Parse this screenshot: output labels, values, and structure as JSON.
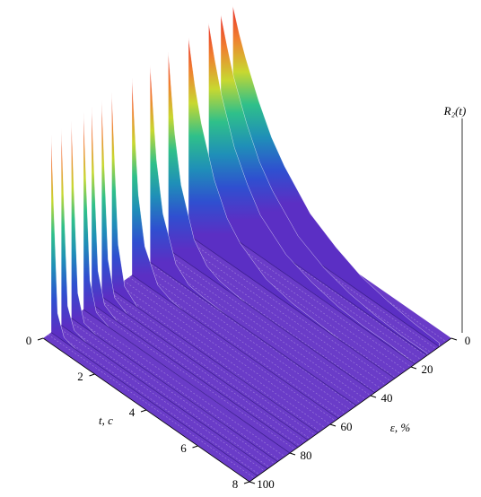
{
  "chart_data": {
    "type": "surface3d",
    "xlabel": "t, c",
    "ylabel": "ε, %",
    "zlabel": "R₂(t)",
    "xlim": [
      0,
      8
    ],
    "xticks": [
      0,
      2,
      4,
      6,
      8
    ],
    "ylim": [
      0,
      100
    ],
    "yticks": [
      0,
      20,
      40,
      60,
      80,
      100
    ],
    "zlim": [
      0,
      1
    ],
    "floor_color": "#6a3cc8",
    "colormap": [
      "#5b2fc4",
      "#2f4fd0",
      "#1f8fb8",
      "#2fc08a",
      "#c8d830",
      "#f08030",
      "#e8302a"
    ],
    "x": [
      0,
      0.25,
      0.5,
      1,
      1.5,
      2,
      3,
      4,
      5,
      6,
      7,
      8
    ],
    "series": [
      {
        "eps": 6,
        "values": [
          1,
          0.88,
          0.78,
          0.61,
          0.47,
          0.37,
          0.22,
          0.14,
          0.08,
          0.05,
          0.03,
          0.02
        ]
      },
      {
        "eps": 12,
        "values": [
          1,
          0.86,
          0.73,
          0.54,
          0.39,
          0.29,
          0.15,
          0.08,
          0.04,
          0.02,
          0.01,
          0.01
        ]
      },
      {
        "eps": 18,
        "values": [
          1,
          0.83,
          0.68,
          0.46,
          0.32,
          0.21,
          0.1,
          0.05,
          0.02,
          0.01,
          0.01,
          0
        ]
      },
      {
        "eps": 28,
        "values": [
          1,
          0.78,
          0.61,
          0.37,
          0.22,
          0.14,
          0.05,
          0.02,
          0.01,
          0,
          0,
          0
        ]
      },
      {
        "eps": 38,
        "values": [
          1,
          0.61,
          0.37,
          0.14,
          0.05,
          0.02,
          0,
          0,
          0,
          0,
          0,
          0
        ]
      },
      {
        "eps": 47,
        "values": [
          1,
          0.54,
          0.29,
          0.08,
          0.02,
          0.01,
          0,
          0,
          0,
          0,
          0,
          0
        ]
      },
      {
        "eps": 56,
        "values": [
          1,
          0.43,
          0.19,
          0.04,
          0.01,
          0,
          0,
          0,
          0,
          0,
          0,
          0
        ]
      },
      {
        "eps": 66,
        "values": [
          1,
          0.25,
          0.06,
          0,
          0,
          0,
          0,
          0,
          0,
          0,
          0,
          0
        ]
      },
      {
        "eps": 71,
        "values": [
          1,
          0.21,
          0.04,
          0,
          0,
          0,
          0,
          0,
          0,
          0,
          0,
          0
        ]
      },
      {
        "eps": 76,
        "values": [
          1,
          0.19,
          0.04,
          0,
          0,
          0,
          0,
          0,
          0,
          0,
          0,
          0
        ]
      },
      {
        "eps": 80,
        "values": [
          1,
          0.17,
          0.03,
          0,
          0,
          0,
          0,
          0,
          0,
          0,
          0,
          0
        ]
      },
      {
        "eps": 86,
        "values": [
          1,
          0.15,
          0.02,
          0,
          0,
          0,
          0,
          0,
          0,
          0,
          0,
          0
        ]
      },
      {
        "eps": 91,
        "values": [
          1,
          0.12,
          0.02,
          0,
          0,
          0,
          0,
          0,
          0,
          0,
          0,
          0
        ]
      },
      {
        "eps": 96,
        "values": [
          1,
          0.12,
          0.02,
          0,
          0,
          0,
          0,
          0,
          0,
          0,
          0,
          0
        ]
      }
    ]
  }
}
